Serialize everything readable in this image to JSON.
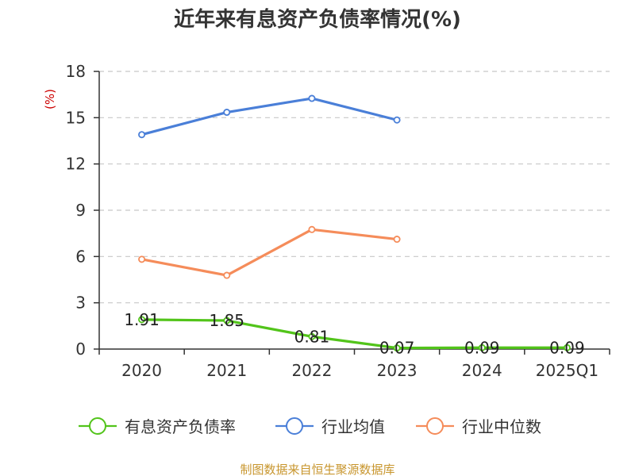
{
  "chart_data": {
    "type": "line",
    "title": "近年来有息资产负债率情况(%)",
    "ylabel": "(%)",
    "categories": [
      "2020",
      "2021",
      "2022",
      "2023",
      "2024",
      "2025Q1"
    ],
    "ylim": [
      0,
      18
    ],
    "yticks": [
      "0",
      "3",
      "6",
      "9",
      "12",
      "15",
      "18"
    ],
    "grid": true,
    "legend_position": "bottom",
    "series": [
      {
        "name": "有息资产负债率",
        "color": "#52c41a",
        "values": [
          1.91,
          1.85,
          0.81,
          0.07,
          0.09,
          0.09
        ],
        "labels": [
          "1.91",
          "1.85",
          "0.81",
          "0.07",
          "0.09",
          "0.09"
        ]
      },
      {
        "name": "行业均值",
        "color": "#4a7fd8",
        "values": [
          13.9,
          15.35,
          16.25,
          14.85,
          null,
          null
        ]
      },
      {
        "name": "行业中位数",
        "color": "#f58c5a",
        "values": [
          5.82,
          4.78,
          7.75,
          7.12,
          null,
          null
        ]
      }
    ]
  },
  "source_text": "制图数据来自恒生聚源数据库",
  "colors": {
    "ylabel": "#cc0000",
    "source": "#c8962e",
    "axis": "#333333",
    "grid": "#c8c8c8"
  }
}
